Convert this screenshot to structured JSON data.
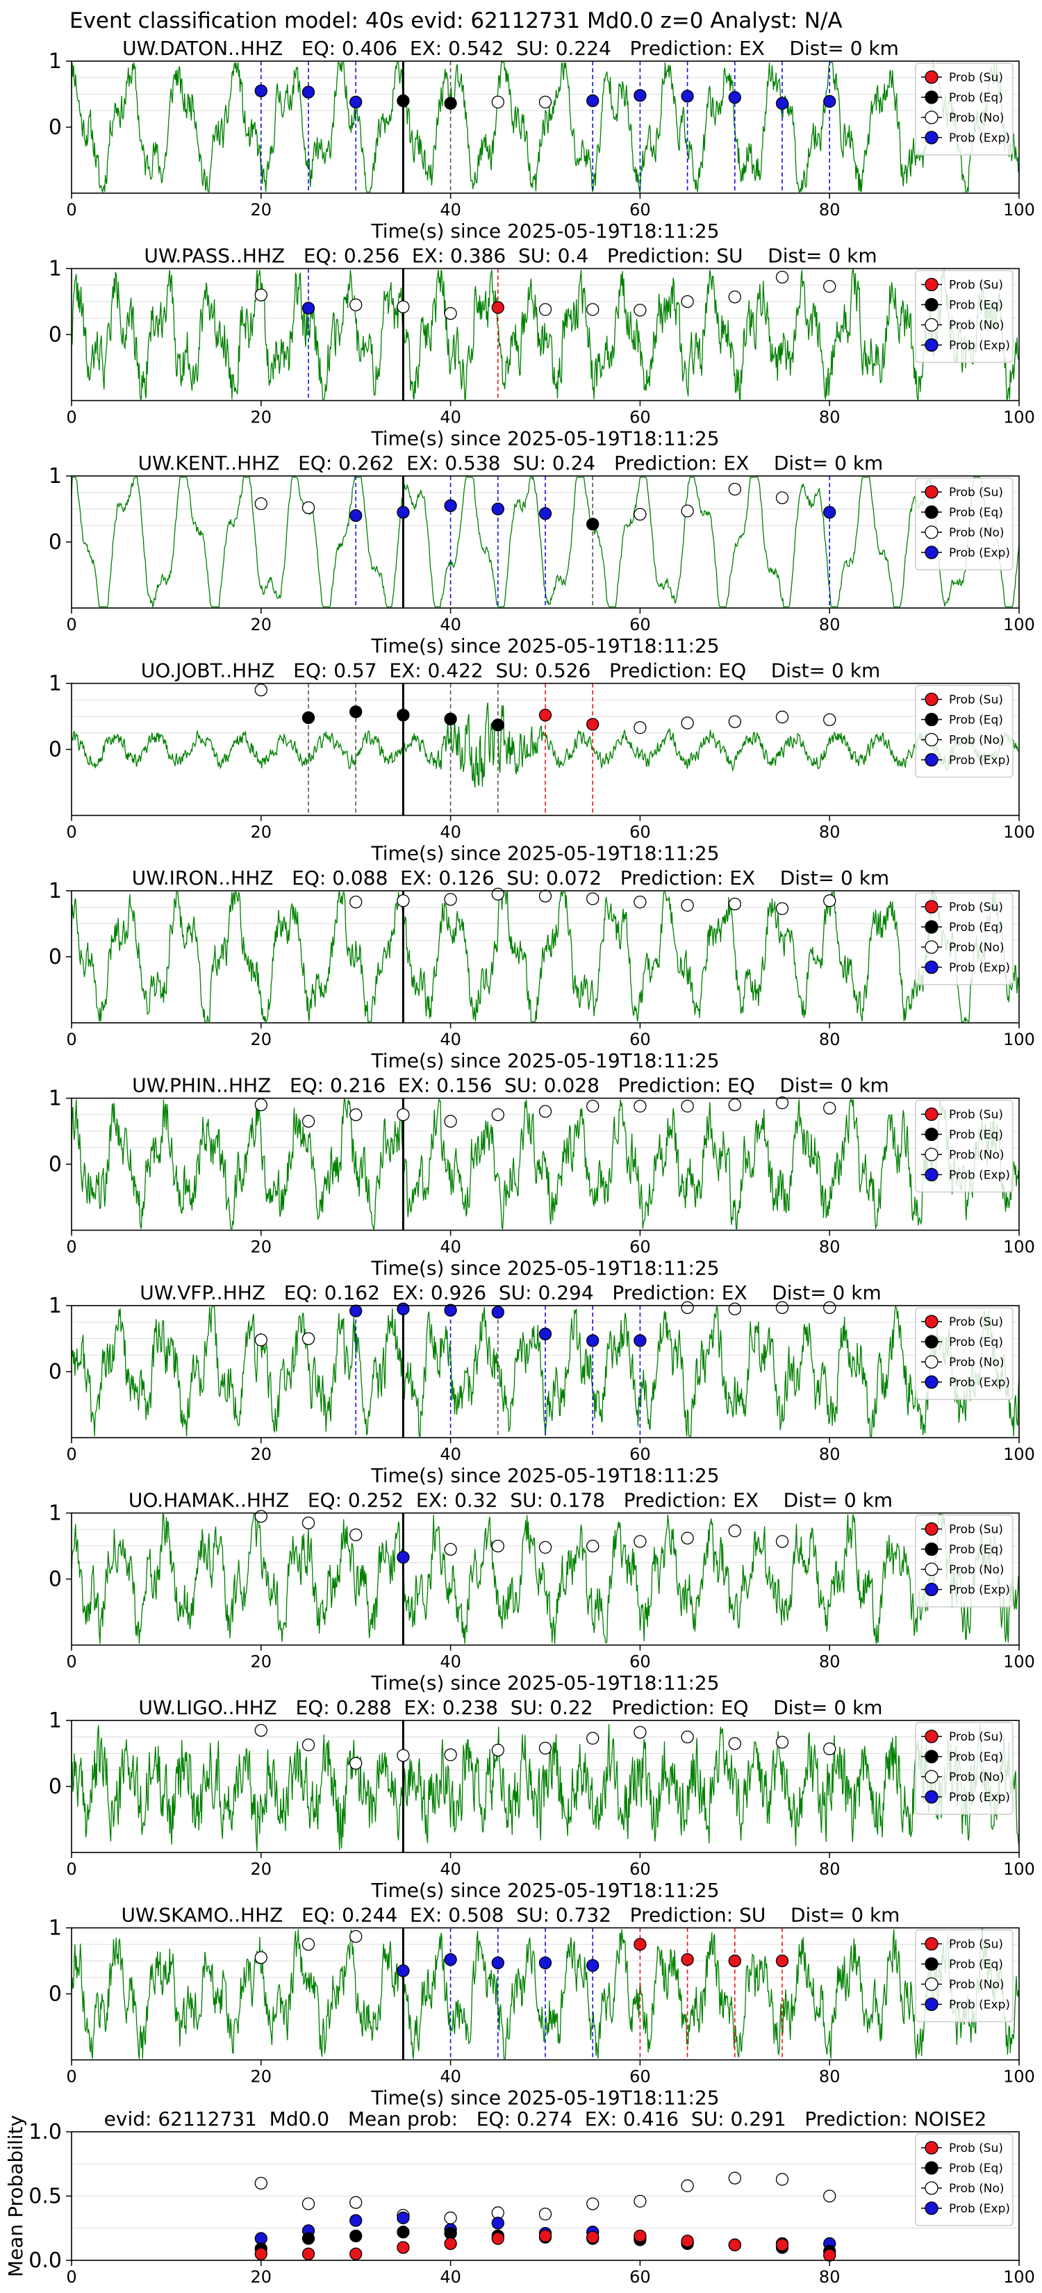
{
  "figure_title": "Event classification model: 40s evid: 62112731 Md0.0 z=0 Analyst: N/A",
  "xlabel": "Time(s) since 2025-05-19T18:11:25",
  "ylabel_summary": "Mean Probability",
  "legend_labels": [
    "Prob (Su)",
    "Prob (Eq)",
    "Prob (No)",
    "Prob (Exp)"
  ],
  "colors": {
    "su": "#e8141c",
    "eq": "#000000",
    "no": "#ffffff",
    "exp": "#1414d8",
    "trace": "#008000",
    "axes": "#000000",
    "grid": "#dddddd"
  },
  "chart_data": [
    {
      "type": "line",
      "title": "UW.DATON..HHZ   EQ: 0.406  EX: 0.542  SU: 0.224   Prediction: EX    Dist= 0 km",
      "xlim": [
        0,
        100
      ],
      "ylim": [
        -1,
        1
      ],
      "xticks": [
        0,
        20,
        40,
        60,
        80,
        100
      ],
      "yticks": [
        1,
        0
      ],
      "pick": 35,
      "trace_seed": 11,
      "trace_style": "lowfreq",
      "points": [
        [
          20,
          "exp",
          0.55
        ],
        [
          25,
          "exp",
          0.53
        ],
        [
          30,
          "exp",
          0.38
        ],
        [
          35,
          "eq",
          0.4
        ],
        [
          40,
          "eq",
          0.36
        ],
        [
          45,
          "no",
          0.38
        ],
        [
          50,
          "no",
          0.38
        ],
        [
          55,
          "exp",
          0.4
        ],
        [
          60,
          "exp",
          0.48
        ],
        [
          65,
          "exp",
          0.47
        ],
        [
          70,
          "exp",
          0.45
        ],
        [
          75,
          "exp",
          0.36
        ],
        [
          80,
          "exp",
          0.39
        ]
      ],
      "vlines": [
        [
          20,
          "exp"
        ],
        [
          25,
          "exp"
        ],
        [
          30,
          "exp"
        ],
        [
          40,
          "eq"
        ],
        [
          55,
          "exp"
        ],
        [
          60,
          "exp"
        ],
        [
          65,
          "exp"
        ],
        [
          70,
          "exp"
        ],
        [
          75,
          "exp"
        ],
        [
          80,
          "exp"
        ]
      ]
    },
    {
      "type": "line",
      "title": "UW.PASS..HHZ   EQ: 0.256  EX: 0.386  SU: 0.4   Prediction: SU    Dist= 0 km",
      "xlim": [
        0,
        100
      ],
      "ylim": [
        -1,
        1
      ],
      "xticks": [
        0,
        20,
        40,
        60,
        80,
        100
      ],
      "yticks": [
        1,
        0
      ],
      "pick": 35,
      "trace_seed": 22,
      "trace_style": "mixed",
      "points": [
        [
          20,
          "no",
          0.6
        ],
        [
          25,
          "exp",
          0.4
        ],
        [
          30,
          "no",
          0.45
        ],
        [
          35,
          "no",
          0.42
        ],
        [
          40,
          "no",
          0.32
        ],
        [
          45,
          "su",
          0.41
        ],
        [
          50,
          "no",
          0.38
        ],
        [
          55,
          "no",
          0.38
        ],
        [
          60,
          "no",
          0.37
        ],
        [
          65,
          "no",
          0.5
        ],
        [
          70,
          "no",
          0.57
        ],
        [
          75,
          "no",
          0.87
        ],
        [
          80,
          "no",
          0.73
        ]
      ],
      "vlines": [
        [
          25,
          "exp"
        ],
        [
          45,
          "su"
        ]
      ]
    },
    {
      "type": "line",
      "title": "UW.KENT..HHZ   EQ: 0.262  EX: 0.538  SU: 0.24   Prediction: EX    Dist= 0 km",
      "xlim": [
        0,
        100
      ],
      "ylim": [
        -1,
        1
      ],
      "xticks": [
        0,
        20,
        40,
        60,
        80,
        100
      ],
      "yticks": [
        1,
        0
      ],
      "pick": 35,
      "trace_seed": 33,
      "trace_style": "smooth",
      "points": [
        [
          20,
          "no",
          0.58
        ],
        [
          25,
          "no",
          0.52
        ],
        [
          30,
          "exp",
          0.4
        ],
        [
          35,
          "exp",
          0.45
        ],
        [
          40,
          "exp",
          0.55
        ],
        [
          45,
          "exp",
          0.5
        ],
        [
          50,
          "exp",
          0.43
        ],
        [
          55,
          "eq",
          0.27
        ],
        [
          60,
          "no",
          0.42
        ],
        [
          65,
          "no",
          0.47
        ],
        [
          70,
          "no",
          0.8
        ],
        [
          75,
          "no",
          0.67
        ],
        [
          80,
          "exp",
          0.45
        ]
      ],
      "vlines": [
        [
          30,
          "exp"
        ],
        [
          40,
          "exp"
        ],
        [
          45,
          "exp"
        ],
        [
          50,
          "exp"
        ],
        [
          55,
          "eq"
        ],
        [
          80,
          "exp"
        ]
      ]
    },
    {
      "type": "line",
      "title": "UO.JOBT..HHZ   EQ: 0.57  EX: 0.422  SU: 0.526   Prediction: EQ    Dist= 0 km",
      "xlim": [
        0,
        100
      ],
      "ylim": [
        -1,
        1
      ],
      "xticks": [
        0,
        20,
        40,
        60,
        80,
        100
      ],
      "yticks": [
        1,
        0
      ],
      "pick": 35,
      "trace_seed": 44,
      "trace_style": "quiet",
      "points": [
        [
          20,
          "no",
          0.9
        ],
        [
          25,
          "eq",
          0.48
        ],
        [
          30,
          "eq",
          0.57
        ],
        [
          35,
          "eq",
          0.52
        ],
        [
          40,
          "eq",
          0.46
        ],
        [
          45,
          "eq",
          0.37
        ],
        [
          50,
          "su",
          0.52
        ],
        [
          55,
          "su",
          0.38
        ],
        [
          60,
          "no",
          0.33
        ],
        [
          65,
          "no",
          0.4
        ],
        [
          70,
          "no",
          0.42
        ],
        [
          75,
          "no",
          0.49
        ],
        [
          80,
          "no",
          0.45
        ]
      ],
      "vlines": [
        [
          25,
          "eq"
        ],
        [
          30,
          "eq"
        ],
        [
          40,
          "eq"
        ],
        [
          45,
          "eq"
        ],
        [
          50,
          "su"
        ],
        [
          55,
          "su"
        ]
      ]
    },
    {
      "type": "line",
      "title": "UW.IRON..HHZ   EQ: 0.088  EX: 0.126  SU: 0.072   Prediction: EX    Dist= 0 km",
      "xlim": [
        0,
        100
      ],
      "ylim": [
        -1,
        1
      ],
      "xticks": [
        0,
        20,
        40,
        60,
        80,
        100
      ],
      "yticks": [
        1,
        0
      ],
      "pick": 35,
      "trace_seed": 55,
      "trace_style": "lowfreq",
      "points": [
        [
          30,
          "no",
          0.83
        ],
        [
          35,
          "no",
          0.85
        ],
        [
          40,
          "no",
          0.87
        ],
        [
          45,
          "no",
          0.95
        ],
        [
          50,
          "no",
          0.92
        ],
        [
          55,
          "no",
          0.88
        ],
        [
          60,
          "no",
          0.83
        ],
        [
          65,
          "no",
          0.78
        ],
        [
          70,
          "no",
          0.8
        ],
        [
          75,
          "no",
          0.73
        ],
        [
          80,
          "no",
          0.85
        ]
      ],
      "vlines": []
    },
    {
      "type": "line",
      "title": "UW.PHIN..HHZ   EQ: 0.216  EX: 0.156  SU: 0.028   Prediction: EQ    Dist= 0 km",
      "xlim": [
        0,
        100
      ],
      "ylim": [
        -1,
        1
      ],
      "xticks": [
        0,
        20,
        40,
        60,
        80,
        100
      ],
      "yticks": [
        1,
        0
      ],
      "pick": 35,
      "trace_seed": 66,
      "trace_style": "mixed",
      "points": [
        [
          20,
          "no",
          0.9
        ],
        [
          25,
          "no",
          0.65
        ],
        [
          30,
          "no",
          0.75
        ],
        [
          35,
          "no",
          0.75
        ],
        [
          40,
          "no",
          0.65
        ],
        [
          45,
          "no",
          0.75
        ],
        [
          50,
          "no",
          0.8
        ],
        [
          55,
          "no",
          0.88
        ],
        [
          60,
          "no",
          0.88
        ],
        [
          65,
          "no",
          0.88
        ],
        [
          70,
          "no",
          0.9
        ],
        [
          75,
          "no",
          0.93
        ],
        [
          80,
          "no",
          0.85
        ]
      ],
      "vlines": []
    },
    {
      "type": "line",
      "title": "UW.VFP..HHZ   EQ: 0.162  EX: 0.926  SU: 0.294   Prediction: EX    Dist= 0 km",
      "xlim": [
        0,
        100
      ],
      "ylim": [
        -1,
        1
      ],
      "xticks": [
        0,
        20,
        40,
        60,
        80,
        100
      ],
      "yticks": [
        1,
        0
      ],
      "pick": 35,
      "trace_seed": 77,
      "trace_style": "mixed",
      "points": [
        [
          20,
          "no",
          0.48
        ],
        [
          25,
          "no",
          0.5
        ],
        [
          30,
          "exp",
          0.92
        ],
        [
          35,
          "exp",
          0.95
        ],
        [
          40,
          "exp",
          0.93
        ],
        [
          45,
          "exp",
          0.9
        ],
        [
          50,
          "exp",
          0.57
        ],
        [
          55,
          "exp",
          0.47
        ],
        [
          60,
          "exp",
          0.47
        ],
        [
          65,
          "no",
          0.97
        ],
        [
          70,
          "no",
          0.95
        ],
        [
          75,
          "no",
          0.97
        ],
        [
          80,
          "no",
          0.97
        ]
      ],
      "vlines": [
        [
          30,
          "exp"
        ],
        [
          40,
          "exp"
        ],
        [
          45,
          "eq"
        ],
        [
          50,
          "exp"
        ],
        [
          55,
          "exp"
        ],
        [
          60,
          "exp"
        ]
      ]
    },
    {
      "type": "line",
      "title": "UO.HAMAK..HHZ   EQ: 0.252  EX: 0.32  SU: 0.178   Prediction: EX    Dist= 0 km",
      "xlim": [
        0,
        100
      ],
      "ylim": [
        -1,
        1
      ],
      "xticks": [
        0,
        20,
        40,
        60,
        80,
        100
      ],
      "yticks": [
        1,
        0
      ],
      "pick": 35,
      "trace_seed": 88,
      "trace_style": "mixed",
      "points": [
        [
          20,
          "no",
          0.95
        ],
        [
          25,
          "no",
          0.85
        ],
        [
          30,
          "no",
          0.67
        ],
        [
          35,
          "exp",
          0.33
        ],
        [
          40,
          "no",
          0.45
        ],
        [
          45,
          "no",
          0.5
        ],
        [
          50,
          "no",
          0.48
        ],
        [
          55,
          "no",
          0.5
        ],
        [
          60,
          "no",
          0.57
        ],
        [
          65,
          "no",
          0.62
        ],
        [
          70,
          "no",
          0.73
        ],
        [
          75,
          "no",
          0.57
        ]
      ],
      "vlines": []
    },
    {
      "type": "line",
      "title": "UW.LIGO..HHZ   EQ: 0.288  EX: 0.238  SU: 0.22   Prediction: EQ    Dist= 0 km",
      "xlim": [
        0,
        100
      ],
      "ylim": [
        -1,
        1
      ],
      "xticks": [
        0,
        20,
        40,
        60,
        80,
        100
      ],
      "yticks": [
        1,
        0
      ],
      "pick": 35,
      "trace_seed": 99,
      "trace_style": "noisy",
      "points": [
        [
          20,
          "no",
          0.85
        ],
        [
          25,
          "no",
          0.63
        ],
        [
          30,
          "no",
          0.35
        ],
        [
          35,
          "no",
          0.47
        ],
        [
          40,
          "no",
          0.48
        ],
        [
          45,
          "no",
          0.55
        ],
        [
          50,
          "no",
          0.58
        ],
        [
          55,
          "no",
          0.73
        ],
        [
          60,
          "no",
          0.82
        ],
        [
          65,
          "no",
          0.75
        ],
        [
          70,
          "no",
          0.65
        ],
        [
          75,
          "no",
          0.67
        ],
        [
          80,
          "no",
          0.57
        ]
      ],
      "vlines": []
    },
    {
      "type": "line",
      "title": "UW.SKAMO..HHZ   EQ: 0.244  EX: 0.508  SU: 0.732   Prediction: SU    Dist= 0 km",
      "xlim": [
        0,
        100
      ],
      "ylim": [
        -1,
        1
      ],
      "xticks": [
        0,
        20,
        40,
        60,
        80,
        100
      ],
      "yticks": [
        1,
        0
      ],
      "pick": 35,
      "trace_seed": 111,
      "trace_style": "mixed",
      "points": [
        [
          20,
          "no",
          0.55
        ],
        [
          25,
          "no",
          0.75
        ],
        [
          30,
          "no",
          0.87
        ],
        [
          35,
          "exp",
          0.35
        ],
        [
          40,
          "exp",
          0.52
        ],
        [
          45,
          "exp",
          0.47
        ],
        [
          50,
          "exp",
          0.47
        ],
        [
          55,
          "exp",
          0.43
        ],
        [
          60,
          "su",
          0.75
        ],
        [
          65,
          "su",
          0.52
        ],
        [
          70,
          "su",
          0.5
        ],
        [
          75,
          "su",
          0.5
        ]
      ],
      "vlines": [
        [
          40,
          "exp"
        ],
        [
          45,
          "exp"
        ],
        [
          50,
          "exp"
        ],
        [
          55,
          "exp"
        ],
        [
          60,
          "su"
        ],
        [
          65,
          "su"
        ],
        [
          70,
          "su"
        ],
        [
          75,
          "su"
        ]
      ]
    },
    {
      "type": "scatter",
      "title": "evid: 62112731  Md0.0   Mean prob:   EQ: 0.274  EX: 0.416  SU: 0.291   Prediction: NOISE2",
      "xlim": [
        0,
        100
      ],
      "ylim": [
        0,
        1
      ],
      "xticks": [
        0,
        20,
        40,
        60,
        80,
        100
      ],
      "yticks": [
        1.0,
        0.5,
        0.0
      ],
      "ytick_labels": [
        "1.0",
        "0.5",
        "0.0"
      ],
      "series": [
        {
          "name": "Prob (No)",
          "kind": "no",
          "x": [
            20,
            25,
            30,
            35,
            40,
            45,
            50,
            55,
            60,
            65,
            70,
            75,
            80
          ],
          "values": [
            0.6,
            0.44,
            0.45,
            0.35,
            0.33,
            0.37,
            0.36,
            0.44,
            0.46,
            0.58,
            0.64,
            0.63,
            0.5
          ]
        },
        {
          "name": "Prob (Exp)",
          "kind": "exp",
          "x": [
            20,
            25,
            30,
            35,
            40,
            45,
            50,
            55,
            60,
            65,
            70,
            75,
            80
          ],
          "values": [
            0.17,
            0.23,
            0.31,
            0.33,
            0.24,
            0.29,
            0.21,
            0.22,
            0.17,
            0.14,
            0.12,
            0.13,
            0.13
          ]
        },
        {
          "name": "Prob (Eq)",
          "kind": "eq",
          "x": [
            20,
            25,
            30,
            35,
            40,
            45,
            50,
            55,
            60,
            65,
            70,
            75,
            80
          ],
          "values": [
            0.09,
            0.17,
            0.19,
            0.22,
            0.21,
            0.19,
            0.18,
            0.17,
            0.16,
            0.13,
            0.12,
            0.1,
            0.07
          ]
        },
        {
          "name": "Prob (Su)",
          "kind": "su",
          "x": [
            20,
            25,
            30,
            35,
            40,
            45,
            50,
            55,
            60,
            65,
            70,
            75,
            80
          ],
          "values": [
            0.05,
            0.05,
            0.05,
            0.1,
            0.13,
            0.17,
            0.19,
            0.18,
            0.19,
            0.15,
            0.12,
            0.12,
            0.04
          ]
        }
      ]
    }
  ]
}
